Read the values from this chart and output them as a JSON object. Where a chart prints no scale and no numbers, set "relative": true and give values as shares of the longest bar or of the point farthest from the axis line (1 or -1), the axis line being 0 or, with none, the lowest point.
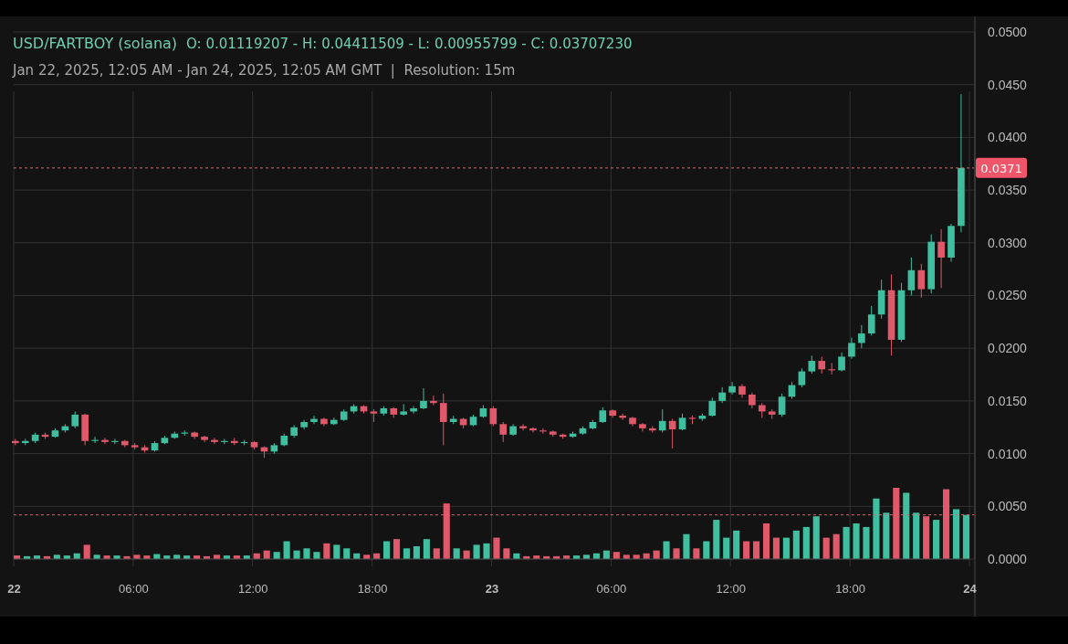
{
  "chart_data": [
    {
      "type": "candlestick",
      "title": "USD/FARTBOY (solana)",
      "subtitle": "Jan 22, 2025, 12:05 AM - Jan 24, 2025, 12:05 AM GMT  |  Resolution: 15m",
      "annotations": [
        "O: 0.01119207 - H: 0.04411509 - L: 0.00955799 - C: 0.03707230"
      ],
      "x": [
        "2025-01-22T00:05",
        "2025-01-22T00:35",
        "2025-01-22T01:05",
        "2025-01-22T01:35",
        "2025-01-22T02:05",
        "2025-01-22T02:35",
        "2025-01-22T03:05",
        "2025-01-22T03:35",
        "2025-01-22T04:05",
        "2025-01-22T04:35",
        "2025-01-22T05:05",
        "2025-01-22T05:35",
        "2025-01-22T06:05",
        "2025-01-22T06:35",
        "2025-01-22T07:05",
        "2025-01-22T07:35",
        "2025-01-22T08:05",
        "2025-01-22T08:35",
        "2025-01-22T09:05",
        "2025-01-22T09:35",
        "2025-01-22T10:05",
        "2025-01-22T10:35",
        "2025-01-22T11:05",
        "2025-01-22T11:35",
        "2025-01-22T12:05",
        "2025-01-22T12:35",
        "2025-01-22T13:05",
        "2025-01-22T13:35",
        "2025-01-22T14:05",
        "2025-01-22T14:35",
        "2025-01-22T15:05",
        "2025-01-22T15:35",
        "2025-01-22T16:05",
        "2025-01-22T16:35",
        "2025-01-22T17:05",
        "2025-01-22T17:35",
        "2025-01-22T18:05",
        "2025-01-22T18:35",
        "2025-01-22T19:05",
        "2025-01-22T19:35",
        "2025-01-22T20:05",
        "2025-01-22T20:35",
        "2025-01-22T21:05",
        "2025-01-22T21:35",
        "2025-01-22T22:05",
        "2025-01-22T22:35",
        "2025-01-22T23:05",
        "2025-01-22T23:35",
        "2025-01-23T00:05",
        "2025-01-23T00:35",
        "2025-01-23T01:05",
        "2025-01-23T01:35",
        "2025-01-23T02:05",
        "2025-01-23T02:35",
        "2025-01-23T03:05",
        "2025-01-23T03:35",
        "2025-01-23T04:05",
        "2025-01-23T04:35",
        "2025-01-23T05:05",
        "2025-01-23T05:35",
        "2025-01-23T06:05",
        "2025-01-23T06:35",
        "2025-01-23T07:05",
        "2025-01-23T07:35",
        "2025-01-23T08:05",
        "2025-01-23T08:35",
        "2025-01-23T09:05",
        "2025-01-23T09:35",
        "2025-01-23T10:05",
        "2025-01-23T10:35",
        "2025-01-23T11:05",
        "2025-01-23T11:35",
        "2025-01-23T12:05",
        "2025-01-23T12:35",
        "2025-01-23T13:05",
        "2025-01-23T13:35",
        "2025-01-23T14:05",
        "2025-01-23T14:35",
        "2025-01-23T15:05",
        "2025-01-23T15:35",
        "2025-01-23T16:05",
        "2025-01-23T16:35",
        "2025-01-23T17:05",
        "2025-01-23T17:35",
        "2025-01-23T18:05",
        "2025-01-23T18:35",
        "2025-01-23T19:05",
        "2025-01-23T19:35",
        "2025-01-23T20:05",
        "2025-01-23T20:35",
        "2025-01-23T21:05",
        "2025-01-23T21:35",
        "2025-01-23T22:05",
        "2025-01-23T22:35",
        "2025-01-23T23:05",
        "2025-01-23T23:35"
      ],
      "ohlc": [
        [
          0.0112,
          0.0114,
          0.0108,
          0.011
        ],
        [
          0.011,
          0.0114,
          0.0108,
          0.0112
        ],
        [
          0.0112,
          0.012,
          0.011,
          0.0118
        ],
        [
          0.0118,
          0.012,
          0.0114,
          0.0116
        ],
        [
          0.0116,
          0.0124,
          0.0115,
          0.0122
        ],
        [
          0.0122,
          0.0128,
          0.012,
          0.0126
        ],
        [
          0.0126,
          0.014,
          0.0124,
          0.0137
        ],
        [
          0.0137,
          0.0138,
          0.0108,
          0.0112
        ],
        [
          0.0112,
          0.0116,
          0.011,
          0.0113
        ],
        [
          0.0113,
          0.0115,
          0.0109,
          0.0111
        ],
        [
          0.0111,
          0.0114,
          0.0109,
          0.0112
        ],
        [
          0.0112,
          0.0113,
          0.0106,
          0.0108
        ],
        [
          0.0108,
          0.011,
          0.0104,
          0.0106
        ],
        [
          0.0106,
          0.0108,
          0.0101,
          0.0103
        ],
        [
          0.0103,
          0.0112,
          0.0102,
          0.011
        ],
        [
          0.011,
          0.0117,
          0.0109,
          0.0115
        ],
        [
          0.0115,
          0.0121,
          0.0114,
          0.0119
        ],
        [
          0.0119,
          0.0122,
          0.0117,
          0.012
        ],
        [
          0.012,
          0.0121,
          0.0114,
          0.0116
        ],
        [
          0.0116,
          0.0117,
          0.0111,
          0.0113
        ],
        [
          0.0113,
          0.0115,
          0.0109,
          0.0111
        ],
        [
          0.0111,
          0.0114,
          0.0109,
          0.0112
        ],
        [
          0.0112,
          0.0115,
          0.0108,
          0.011
        ],
        [
          0.011,
          0.0113,
          0.0108,
          0.0111
        ],
        [
          0.0111,
          0.0112,
          0.0104,
          0.0106
        ],
        [
          0.0106,
          0.0107,
          0.0096,
          0.0102
        ],
        [
          0.0102,
          0.011,
          0.01,
          0.0108
        ],
        [
          0.0108,
          0.0119,
          0.0107,
          0.0117
        ],
        [
          0.0117,
          0.0127,
          0.0115,
          0.0125
        ],
        [
          0.0125,
          0.0132,
          0.0123,
          0.013
        ],
        [
          0.013,
          0.0136,
          0.0128,
          0.0133
        ],
        [
          0.0133,
          0.0134,
          0.0126,
          0.0128
        ],
        [
          0.0128,
          0.0134,
          0.0127,
          0.0132
        ],
        [
          0.0132,
          0.0142,
          0.0131,
          0.014
        ],
        [
          0.014,
          0.0147,
          0.0138,
          0.0145
        ],
        [
          0.0145,
          0.0146,
          0.0138,
          0.014
        ],
        [
          0.014,
          0.0142,
          0.013,
          0.0138
        ],
        [
          0.0138,
          0.0145,
          0.0136,
          0.0143
        ],
        [
          0.0143,
          0.0144,
          0.0134,
          0.0137
        ],
        [
          0.0137,
          0.0147,
          0.0136,
          0.014
        ],
        [
          0.014,
          0.0145,
          0.0138,
          0.0143
        ],
        [
          0.0143,
          0.0162,
          0.0142,
          0.015
        ],
        [
          0.015,
          0.0155,
          0.0146,
          0.0148
        ],
        [
          0.0148,
          0.0157,
          0.0108,
          0.013
        ],
        [
          0.013,
          0.0136,
          0.0128,
          0.0133
        ],
        [
          0.0133,
          0.0134,
          0.0124,
          0.0127
        ],
        [
          0.0127,
          0.0137,
          0.0126,
          0.0135
        ],
        [
          0.0135,
          0.0146,
          0.0134,
          0.0143
        ],
        [
          0.0143,
          0.0145,
          0.0126,
          0.0128
        ],
        [
          0.0128,
          0.013,
          0.0111,
          0.0118
        ],
        [
          0.0118,
          0.0128,
          0.0117,
          0.0126
        ],
        [
          0.0126,
          0.0128,
          0.0122,
          0.0124
        ],
        [
          0.0124,
          0.0125,
          0.012,
          0.0122
        ],
        [
          0.0122,
          0.0124,
          0.0119,
          0.0121
        ],
        [
          0.0121,
          0.0122,
          0.0116,
          0.0118
        ],
        [
          0.0118,
          0.0119,
          0.0114,
          0.0116
        ],
        [
          0.0116,
          0.0121,
          0.0115,
          0.0119
        ],
        [
          0.0119,
          0.0126,
          0.0118,
          0.0124
        ],
        [
          0.0124,
          0.0132,
          0.0123,
          0.013
        ],
        [
          0.013,
          0.0144,
          0.0129,
          0.0141
        ],
        [
          0.0141,
          0.0142,
          0.0134,
          0.0136
        ],
        [
          0.0136,
          0.0138,
          0.0132,
          0.0134
        ],
        [
          0.0134,
          0.0135,
          0.0126,
          0.0128
        ],
        [
          0.0128,
          0.0129,
          0.0121,
          0.0124
        ],
        [
          0.0124,
          0.0126,
          0.012,
          0.0122
        ],
        [
          0.0122,
          0.0142,
          0.012,
          0.0131
        ],
        [
          0.0131,
          0.0133,
          0.0105,
          0.0123
        ],
        [
          0.0123,
          0.0138,
          0.0122,
          0.0134
        ],
        [
          0.0134,
          0.0136,
          0.0128,
          0.0133
        ],
        [
          0.0133,
          0.0138,
          0.0131,
          0.0136
        ],
        [
          0.0136,
          0.0153,
          0.0135,
          0.015
        ],
        [
          0.015,
          0.0163,
          0.0148,
          0.0158
        ],
        [
          0.0158,
          0.0168,
          0.0156,
          0.0164
        ],
        [
          0.0164,
          0.0166,
          0.0153,
          0.0156
        ],
        [
          0.0156,
          0.0158,
          0.0143,
          0.0146
        ],
        [
          0.0146,
          0.0148,
          0.0134,
          0.014
        ],
        [
          0.014,
          0.0142,
          0.0133,
          0.0137
        ],
        [
          0.0137,
          0.0157,
          0.0135,
          0.0154
        ],
        [
          0.0154,
          0.0168,
          0.0152,
          0.0165
        ],
        [
          0.0165,
          0.0181,
          0.0163,
          0.0178
        ],
        [
          0.0178,
          0.0193,
          0.0176,
          0.0188
        ],
        [
          0.0188,
          0.0192,
          0.0176,
          0.018
        ],
        [
          0.018,
          0.0186,
          0.0175,
          0.0179
        ],
        [
          0.0179,
          0.0196,
          0.0178,
          0.0192
        ],
        [
          0.0192,
          0.021,
          0.019,
          0.0205
        ],
        [
          0.0205,
          0.0222,
          0.02,
          0.0214
        ],
        [
          0.0214,
          0.024,
          0.0212,
          0.0232
        ],
        [
          0.0232,
          0.0265,
          0.0228,
          0.0255
        ],
        [
          0.0255,
          0.027,
          0.0193,
          0.0208
        ],
        [
          0.0208,
          0.0262,
          0.0206,
          0.0255
        ],
        [
          0.0255,
          0.0286,
          0.025,
          0.0274
        ],
        [
          0.0274,
          0.028,
          0.0248,
          0.0256
        ],
        [
          0.0256,
          0.0308,
          0.0252,
          0.0301
        ],
        [
          0.0301,
          0.0313,
          0.0257,
          0.0286
        ],
        [
          0.0286,
          0.0318,
          0.0282,
          0.0316
        ],
        [
          0.0316,
          0.0441,
          0.031,
          0.0371
        ]
      ],
      "colors": [
        "#e0596b",
        "#3fbf9f",
        "#3fbf9f",
        "#e0596b",
        "#3fbf9f",
        "#3fbf9f",
        "#3fbf9f",
        "#e0596b",
        "#3fbf9f",
        "#e0596b",
        "#3fbf9f",
        "#e0596b",
        "#e0596b",
        "#e0596b",
        "#3fbf9f",
        "#3fbf9f",
        "#3fbf9f",
        "#3fbf9f",
        "#e0596b",
        "#e0596b",
        "#e0596b",
        "#3fbf9f",
        "#e0596b",
        "#3fbf9f",
        "#e0596b",
        "#e0596b",
        "#3fbf9f",
        "#3fbf9f",
        "#3fbf9f",
        "#3fbf9f",
        "#3fbf9f",
        "#e0596b",
        "#3fbf9f",
        "#3fbf9f",
        "#3fbf9f",
        "#e0596b",
        "#e0596b",
        "#3fbf9f",
        "#e0596b",
        "#3fbf9f",
        "#3fbf9f",
        "#3fbf9f",
        "#e0596b",
        "#e0596b",
        "#3fbf9f",
        "#e0596b",
        "#3fbf9f",
        "#3fbf9f",
        "#e0596b",
        "#e0596b",
        "#3fbf9f",
        "#e0596b",
        "#e0596b",
        "#e0596b",
        "#e0596b",
        "#e0596b",
        "#3fbf9f",
        "#3fbf9f",
        "#3fbf9f",
        "#3fbf9f",
        "#e0596b",
        "#e0596b",
        "#e0596b",
        "#e0596b",
        "#e0596b",
        "#3fbf9f",
        "#e0596b",
        "#3fbf9f",
        "#e0596b",
        "#3fbf9f",
        "#3fbf9f",
        "#3fbf9f",
        "#3fbf9f",
        "#e0596b",
        "#e0596b",
        "#e0596b",
        "#e0596b",
        "#3fbf9f",
        "#3fbf9f",
        "#3fbf9f",
        "#3fbf9f",
        "#e0596b",
        "#e0596b",
        "#3fbf9f",
        "#3fbf9f",
        "#3fbf9f",
        "#3fbf9f",
        "#3fbf9f",
        "#e0596b",
        "#3fbf9f",
        "#3fbf9f",
        "#e0596b",
        "#3fbf9f",
        "#e0596b",
        "#3fbf9f",
        "#3fbf9f"
      ],
      "xlim": [
        "2025-01-22T00:00",
        "2025-01-24T00:00"
      ],
      "xticks": [
        {
          "value": "2025-01-22T00:00",
          "label": "22"
        },
        {
          "value": "2025-01-22T06:00",
          "label": "06:00"
        },
        {
          "value": "2025-01-22T12:00",
          "label": "12:00"
        },
        {
          "value": "2025-01-22T18:00",
          "label": "18:00"
        },
        {
          "value": "2025-01-23T00:00",
          "label": "23"
        },
        {
          "value": "2025-01-23T06:00",
          "label": "06:00"
        },
        {
          "value": "2025-01-23T12:00",
          "label": "12:00"
        },
        {
          "value": "2025-01-23T18:00",
          "label": "18:00"
        },
        {
          "value": "2025-01-24T00:00",
          "label": "24"
        }
      ],
      "ylim": [
        0,
        0.05
      ],
      "yticks": [
        {
          "value": 0,
          "label": "0.0000"
        },
        {
          "value": 0.005,
          "label": "0.0050"
        },
        {
          "value": 0.01,
          "label": "0.0100"
        },
        {
          "value": 0.015,
          "label": "0.0150"
        },
        {
          "value": 0.02,
          "label": "0.0200"
        },
        {
          "value": 0.025,
          "label": "0.0250"
        },
        {
          "value": 0.03,
          "label": "0.0300"
        },
        {
          "value": 0.035,
          "label": "0.0350"
        },
        {
          "value": 0.04,
          "label": "0.0400"
        },
        {
          "value": 0.045,
          "label": "0.0450"
        },
        {
          "value": 0.05,
          "label": "0.0500"
        }
      ],
      "grid": true,
      "ref_lines": [
        {
          "axis": "y",
          "value": 0.0371,
          "label": "0.0371",
          "color": "#f0566a",
          "line_style": "dashed"
        }
      ]
    },
    {
      "type": "bar",
      "relative": true,
      "categories": [
        null,
        null,
        null,
        null,
        null,
        null,
        null,
        null,
        null,
        null,
        null,
        null,
        null,
        null,
        null,
        null,
        null,
        null,
        null,
        null,
        null,
        null,
        null,
        null,
        null,
        null,
        null,
        null,
        null,
        null,
        null,
        null,
        null,
        null,
        null,
        null,
        null,
        null,
        null,
        null,
        null,
        null,
        null,
        null,
        null,
        null,
        null,
        null,
        null,
        null,
        null,
        null,
        null,
        null,
        null,
        null,
        null,
        null,
        null,
        null,
        null,
        null,
        null,
        null,
        null,
        null,
        null,
        null,
        null,
        null,
        null,
        null,
        null,
        null,
        null,
        null,
        null,
        null,
        null,
        null,
        null,
        null,
        null,
        null,
        null,
        null,
        null,
        null,
        null,
        null,
        null,
        null,
        null,
        null,
        null,
        null
      ],
      "values": [
        0.05,
        0.04,
        0.05,
        0.04,
        0.06,
        0.05,
        0.08,
        0.2,
        0.06,
        0.05,
        0.05,
        0.04,
        0.06,
        0.05,
        0.07,
        0.05,
        0.06,
        0.05,
        0.05,
        0.04,
        0.06,
        0.05,
        0.05,
        0.05,
        0.08,
        0.12,
        0.1,
        0.25,
        0.12,
        0.15,
        0.1,
        0.22,
        0.2,
        0.15,
        0.08,
        0.06,
        0.08,
        0.25,
        0.28,
        0.15,
        0.18,
        0.28,
        0.15,
        0.78,
        0.15,
        0.12,
        0.2,
        0.22,
        0.3,
        0.15,
        0.08,
        0.04,
        0.05,
        0.04,
        0.04,
        0.05,
        0.05,
        0.06,
        0.08,
        0.12,
        0.1,
        0.06,
        0.06,
        0.08,
        0.12,
        0.25,
        0.15,
        0.35,
        0.15,
        0.25,
        0.55,
        0.3,
        0.4,
        0.25,
        0.25,
        0.5,
        0.3,
        0.3,
        0.4,
        0.45,
        0.6,
        0.3,
        0.35,
        0.45,
        0.5,
        0.45,
        0.85,
        0.65,
        1,
        0.93,
        0.65,
        0.6,
        0.55,
        0.98,
        0.7,
        0.62
      ],
      "colors": [
        "#e0596b",
        "#3fbf9f",
        "#3fbf9f",
        "#e0596b",
        "#3fbf9f",
        "#3fbf9f",
        "#3fbf9f",
        "#e0596b",
        "#3fbf9f",
        "#e0596b",
        "#3fbf9f",
        "#e0596b",
        "#e0596b",
        "#e0596b",
        "#3fbf9f",
        "#3fbf9f",
        "#3fbf9f",
        "#3fbf9f",
        "#e0596b",
        "#e0596b",
        "#e0596b",
        "#3fbf9f",
        "#e0596b",
        "#3fbf9f",
        "#e0596b",
        "#e0596b",
        "#3fbf9f",
        "#3fbf9f",
        "#3fbf9f",
        "#3fbf9f",
        "#3fbf9f",
        "#e0596b",
        "#3fbf9f",
        "#3fbf9f",
        "#3fbf9f",
        "#e0596b",
        "#e0596b",
        "#3fbf9f",
        "#e0596b",
        "#3fbf9f",
        "#3fbf9f",
        "#3fbf9f",
        "#e0596b",
        "#e0596b",
        "#3fbf9f",
        "#e0596b",
        "#3fbf9f",
        "#3fbf9f",
        "#e0596b",
        "#e0596b",
        "#3fbf9f",
        "#e0596b",
        "#e0596b",
        "#e0596b",
        "#e0596b",
        "#e0596b",
        "#3fbf9f",
        "#3fbf9f",
        "#3fbf9f",
        "#3fbf9f",
        "#e0596b",
        "#e0596b",
        "#e0596b",
        "#e0596b",
        "#e0596b",
        "#3fbf9f",
        "#e0596b",
        "#3fbf9f",
        "#e0596b",
        "#3fbf9f",
        "#3fbf9f",
        "#3fbf9f",
        "#3fbf9f",
        "#e0596b",
        "#e0596b",
        "#e0596b",
        "#e0596b",
        "#3fbf9f",
        "#3fbf9f",
        "#3fbf9f",
        "#3fbf9f",
        "#e0596b",
        "#e0596b",
        "#3fbf9f",
        "#3fbf9f",
        "#3fbf9f",
        "#3fbf9f",
        "#3fbf9f",
        "#e0596b",
        "#3fbf9f",
        "#3fbf9f",
        "#e0596b",
        "#3fbf9f",
        "#e0596b",
        "#3fbf9f",
        "#3fbf9f"
      ],
      "ref_lines": [
        {
          "axis": "y",
          "value": 0.62,
          "color": "#f0566a",
          "line_style": "dashed"
        }
      ]
    }
  ]
}
